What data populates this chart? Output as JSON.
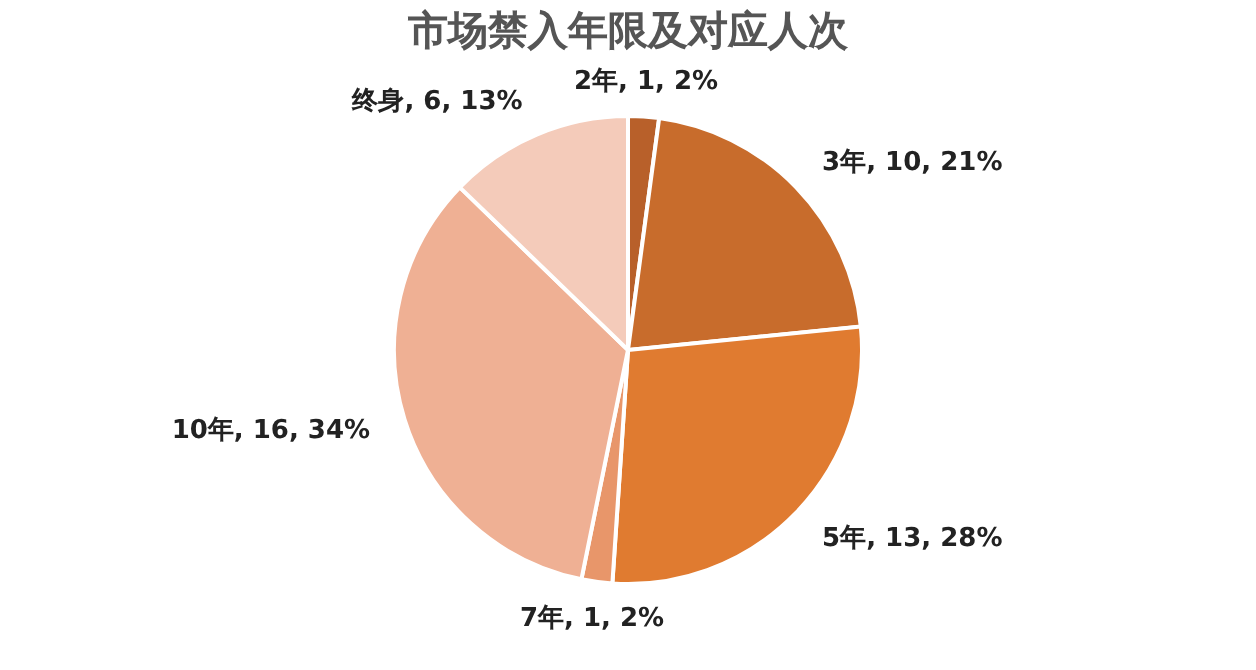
{
  "chart_data": {
    "type": "pie",
    "title": "市场禁入年限及对应人次",
    "categories": [
      "2年",
      "3年",
      "5年",
      "7年",
      "10年",
      "终身"
    ],
    "values": [
      1,
      10,
      13,
      1,
      16,
      6
    ],
    "colors": [
      "#b8602a",
      "#c86c2c",
      "#e07b30",
      "#e8966a",
      "#efb094",
      "#f4cbba"
    ],
    "value_labels": [
      "1, 2%",
      "10, 21%",
      "13, 28%",
      "1, 2%",
      "16, 34%",
      "6, 13%"
    ],
    "legend": false
  }
}
